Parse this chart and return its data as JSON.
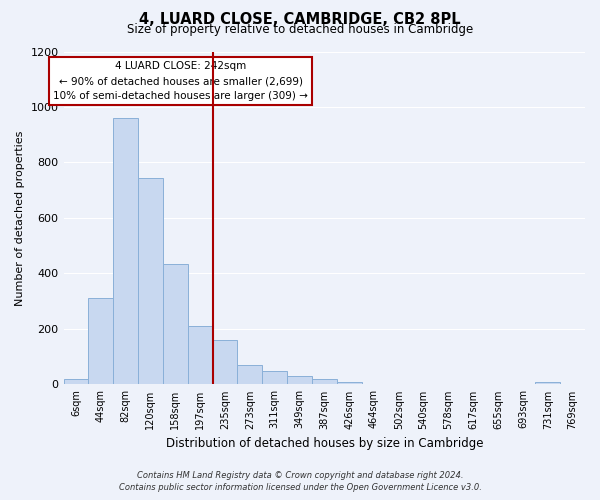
{
  "title": "4, LUARD CLOSE, CAMBRIDGE, CB2 8PL",
  "subtitle": "Size of property relative to detached houses in Cambridge",
  "xlabel": "Distribution of detached houses by size in Cambridge",
  "ylabel": "Number of detached properties",
  "bin_labels": [
    "6sqm",
    "44sqm",
    "82sqm",
    "120sqm",
    "158sqm",
    "197sqm",
    "235sqm",
    "273sqm",
    "311sqm",
    "349sqm",
    "387sqm",
    "426sqm",
    "464sqm",
    "502sqm",
    "540sqm",
    "578sqm",
    "617sqm",
    "655sqm",
    "693sqm",
    "731sqm",
    "769sqm"
  ],
  "bar_heights": [
    20,
    310,
    960,
    745,
    435,
    210,
    160,
    70,
    48,
    32,
    18,
    8,
    3,
    2,
    1,
    0,
    0,
    0,
    0,
    8,
    0
  ],
  "bar_color": "#c8d8f0",
  "bar_edge_color": "#8ab0d8",
  "vline_x_idx": 6,
  "vline_color": "#aa0000",
  "annotation_title": "4 LUARD CLOSE: 242sqm",
  "annotation_line1": "← 90% of detached houses are smaller (2,699)",
  "annotation_line2": "10% of semi-detached houses are larger (309) →",
  "annotation_box_color": "#ffffff",
  "annotation_box_edge": "#aa0000",
  "ylim": [
    0,
    1200
  ],
  "yticks": [
    0,
    200,
    400,
    600,
    800,
    1000,
    1200
  ],
  "background_color": "#eef2fa",
  "grid_color": "#ffffff",
  "footer_line1": "Contains HM Land Registry data © Crown copyright and database right 2024.",
  "footer_line2": "Contains public sector information licensed under the Open Government Licence v3.0."
}
